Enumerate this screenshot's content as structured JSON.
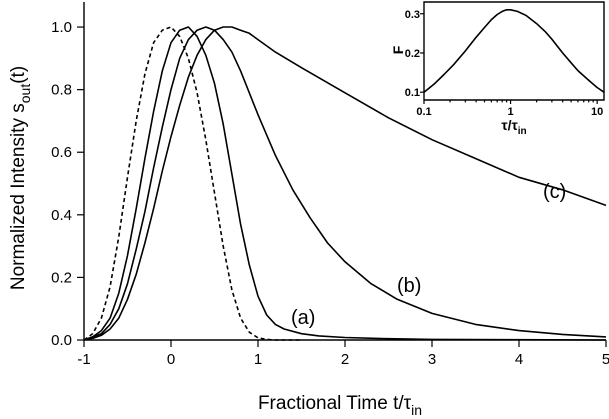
{
  "chart_data": [
    {
      "type": "line",
      "xlabel": "Fractional Time t/τ",
      "xlabel_sub": "in",
      "ylabel": "Normalized Intensity s",
      "ylabel_sub": "out",
      "ylabel_suffix": "(t)",
      "xlim": [
        -1,
        5
      ],
      "ylim": [
        0,
        1.08
      ],
      "x_ticks": [
        -1,
        0,
        1,
        2,
        3,
        4,
        5
      ],
      "x_tick_labels": [
        "-1",
        "0",
        "1",
        "2",
        "3",
        "4",
        "5"
      ],
      "y_ticks": [
        0,
        0.2,
        0.4,
        0.6,
        0.8,
        1.0
      ],
      "y_tick_labels": [
        "0.0",
        "0.2",
        "0.4",
        "0.6",
        "0.8",
        "1.0"
      ],
      "series": [
        {
          "style": "dashed",
          "x": [
            -1,
            -0.9,
            -0.8,
            -0.7,
            -0.6,
            -0.5,
            -0.4,
            -0.3,
            -0.2,
            -0.1,
            0,
            0.1,
            0.2,
            0.3,
            0.4,
            0.5,
            0.6,
            0.7,
            0.8,
            0.9,
            1.0,
            1.1,
            1.2,
            1.5
          ],
          "y": [
            0.0,
            0.02,
            0.07,
            0.17,
            0.33,
            0.52,
            0.7,
            0.85,
            0.95,
            0.99,
            1.0,
            0.97,
            0.9,
            0.79,
            0.64,
            0.47,
            0.3,
            0.16,
            0.07,
            0.025,
            0.007,
            0.002,
            0.0,
            0.0
          ]
        },
        {
          "label": "(a)",
          "x": [
            -1,
            -0.9,
            -0.8,
            -0.7,
            -0.6,
            -0.5,
            -0.4,
            -0.3,
            -0.2,
            -0.1,
            0,
            0.1,
            0.2,
            0.3,
            0.4,
            0.5,
            0.6,
            0.7,
            0.8,
            0.9,
            1.0,
            1.1,
            1.2,
            1.3,
            1.5,
            1.7,
            2.0,
            2.5,
            3,
            4,
            5
          ],
          "y": [
            0.0,
            0.01,
            0.03,
            0.07,
            0.15,
            0.27,
            0.42,
            0.58,
            0.73,
            0.86,
            0.95,
            0.99,
            1.0,
            0.97,
            0.91,
            0.82,
            0.69,
            0.53,
            0.37,
            0.24,
            0.14,
            0.08,
            0.05,
            0.035,
            0.02,
            0.013,
            0.008,
            0.004,
            0.002,
            0.001,
            0.0
          ]
        },
        {
          "label": "(b)",
          "x": [
            -1,
            -0.9,
            -0.8,
            -0.7,
            -0.6,
            -0.5,
            -0.4,
            -0.3,
            -0.2,
            -0.1,
            0,
            0.1,
            0.2,
            0.3,
            0.4,
            0.5,
            0.6,
            0.7,
            0.8,
            0.9,
            1.0,
            1.2,
            1.4,
            1.6,
            1.8,
            2.0,
            2.3,
            2.6,
            3.0,
            3.5,
            4.0,
            4.5,
            5.0
          ],
          "y": [
            0.0,
            0.01,
            0.02,
            0.05,
            0.1,
            0.18,
            0.29,
            0.41,
            0.55,
            0.68,
            0.8,
            0.9,
            0.96,
            0.99,
            1.0,
            0.99,
            0.96,
            0.92,
            0.86,
            0.79,
            0.72,
            0.59,
            0.48,
            0.39,
            0.31,
            0.25,
            0.18,
            0.13,
            0.085,
            0.05,
            0.03,
            0.018,
            0.01
          ]
        },
        {
          "label": "(c)",
          "x": [
            -1,
            -0.9,
            -0.8,
            -0.7,
            -0.6,
            -0.5,
            -0.4,
            -0.3,
            -0.2,
            -0.1,
            0,
            0.1,
            0.2,
            0.3,
            0.4,
            0.5,
            0.6,
            0.7,
            0.8,
            0.9,
            1.0,
            1.2,
            1.5,
            2.0,
            2.5,
            3.0,
            3.5,
            4.0,
            4.5,
            5.0
          ],
          "y": [
            0.0,
            0.005,
            0.015,
            0.035,
            0.07,
            0.13,
            0.21,
            0.31,
            0.42,
            0.54,
            0.65,
            0.75,
            0.84,
            0.91,
            0.96,
            0.99,
            1.0,
            1.0,
            0.99,
            0.98,
            0.96,
            0.92,
            0.87,
            0.79,
            0.71,
            0.64,
            0.58,
            0.52,
            0.48,
            0.43
          ]
        }
      ],
      "annotations": [
        "(a)",
        "(b)",
        "(c)"
      ]
    },
    {
      "type": "line",
      "xlabel": "τ/τ",
      "xlabel_sub": "in",
      "ylabel": "F",
      "xscale": "log",
      "xlim": [
        0.1,
        12
      ],
      "ylim": [
        0.08,
        0.33
      ],
      "x_ticks": [
        0.1,
        1,
        10
      ],
      "x_tick_labels": [
        "0.1",
        "1",
        "10"
      ],
      "y_ticks": [
        0.1,
        0.2,
        0.3
      ],
      "y_tick_labels": [
        "0.1",
        "0.2",
        "0.3"
      ],
      "series": [
        {
          "x": [
            0.1,
            0.13,
            0.17,
            0.22,
            0.3,
            0.4,
            0.5,
            0.6,
            0.7,
            0.8,
            0.9,
            1.0,
            1.2,
            1.5,
            2.0,
            2.5,
            3.0,
            4.0,
            5.0,
            6.0,
            8.0,
            10.0,
            12.0
          ],
          "y": [
            0.1,
            0.12,
            0.145,
            0.17,
            0.205,
            0.24,
            0.265,
            0.285,
            0.298,
            0.306,
            0.31,
            0.31,
            0.306,
            0.296,
            0.275,
            0.255,
            0.235,
            0.2,
            0.175,
            0.155,
            0.13,
            0.112,
            0.1
          ]
        }
      ]
    }
  ]
}
